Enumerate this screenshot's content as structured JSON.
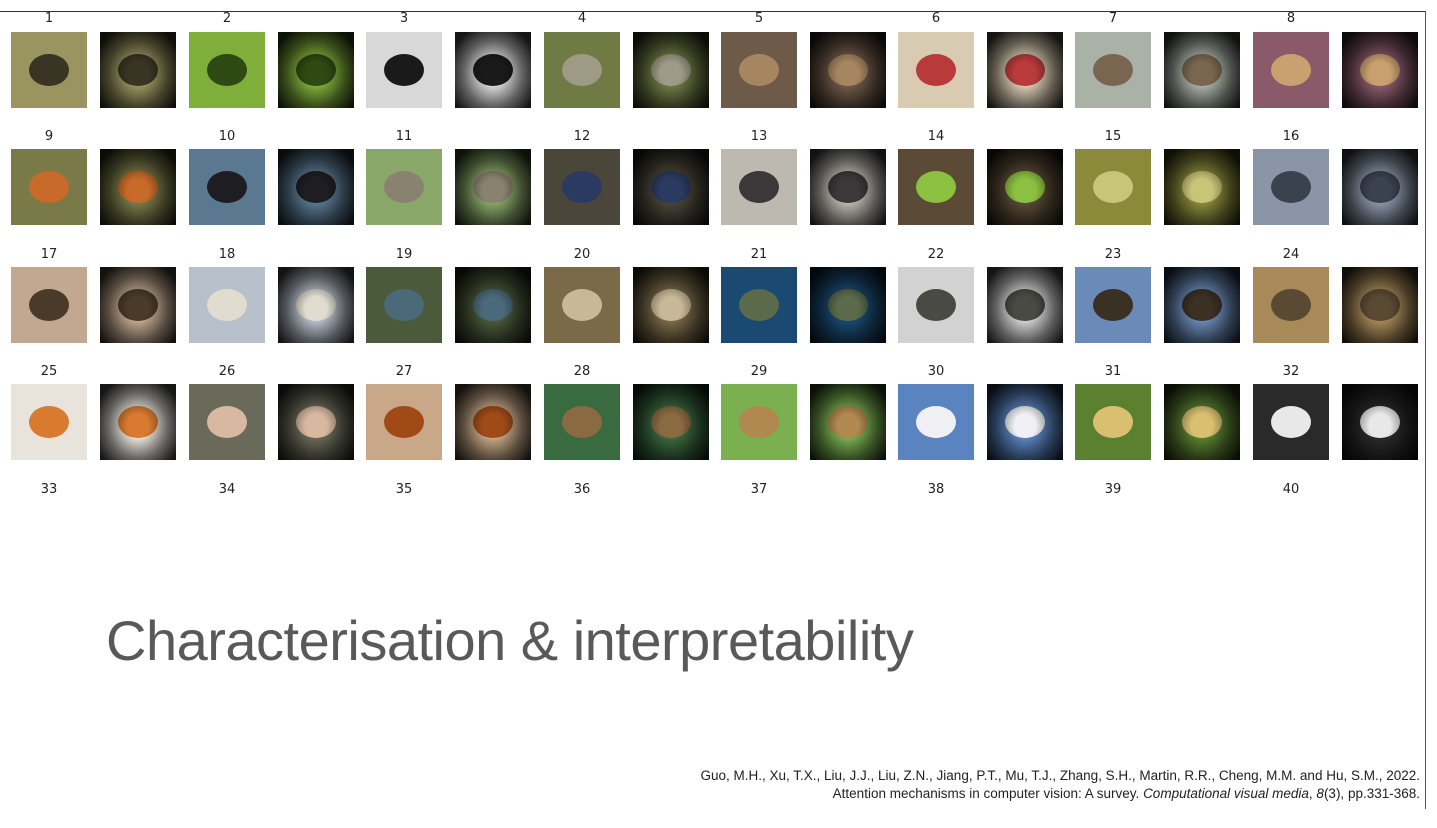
{
  "slide": {
    "title": "Characterisation & interpretability",
    "citation": {
      "line1": "Guo, M.H., Xu, T.X., Liu, J.J., Liu, Z.N., Jiang, P.T., Mu, T.J., Zhang, S.H., Martin, R.R., Cheng, M.M. and Hu, S.M., 2022.",
      "line2_pre": "Attention mechanisms in computer vision: A survey. ",
      "journal": "Computational visual media",
      "volume": "8",
      "line2_post": "(3), pp.331-368."
    }
  },
  "figure": {
    "numbers": [
      "1",
      "2",
      "3",
      "4",
      "5",
      "6",
      "7",
      "8",
      "9",
      "10",
      "11",
      "12",
      "13",
      "14",
      "15",
      "16",
      "17",
      "18",
      "19",
      "20",
      "21",
      "22",
      "23",
      "24",
      "25",
      "26",
      "27",
      "28",
      "29",
      "30",
      "31",
      "32",
      "33",
      "34",
      "35",
      "36",
      "37",
      "38",
      "39",
      "40"
    ],
    "thumbnails": [
      {
        "bg": "#9a9460",
        "subj": "#3a3424"
      },
      {
        "bg": "#7fae3a",
        "subj": "#2e4a12"
      },
      {
        "bg": "#d8d8d8",
        "subj": "#1a1a1a"
      },
      {
        "bg": "#6f7a44",
        "subj": "#9e9a86"
      },
      {
        "bg": "#6e5a48",
        "subj": "#a68660"
      },
      {
        "bg": "#d9cbb2",
        "subj": "#b83a3a"
      },
      {
        "bg": "#aab2a8",
        "subj": "#7a6650"
      },
      {
        "bg": "#8a5a6a",
        "subj": "#c9a070"
      },
      {
        "bg": "#7a7a48",
        "subj": "#c86a2a"
      },
      {
        "bg": "#5a7890",
        "subj": "#1e1e22"
      },
      {
        "bg": "#8aa86a",
        "subj": "#8a8270"
      },
      {
        "bg": "#4a463a",
        "subj": "#2a3a60"
      },
      {
        "bg": "#bdb8b0",
        "subj": "#3a3838"
      },
      {
        "bg": "#5a4a36",
        "subj": "#8cc040"
      },
      {
        "bg": "#8a8a3a",
        "subj": "#c8c478"
      },
      {
        "bg": "#8a96a8",
        "subj": "#3a4250"
      },
      {
        "bg": "#c2a890",
        "subj": "#4a3a2a"
      },
      {
        "bg": "#b8c0cc",
        "subj": "#e0dcd0"
      },
      {
        "bg": "#4a5a3a",
        "subj": "#4a6a7a"
      },
      {
        "bg": "#7a6a48",
        "subj": "#c8b898"
      },
      {
        "bg": "#1a4a72",
        "subj": "#5a6a4a"
      },
      {
        "bg": "#d2d2d2",
        "subj": "#4a4a44"
      },
      {
        "bg": "#6a8ab8",
        "subj": "#3a3024"
      },
      {
        "bg": "#a88a58",
        "subj": "#5a4a34"
      },
      {
        "bg": "#e8e4dc",
        "subj": "#d87a30"
      },
      {
        "bg": "#6a6a5a",
        "subj": "#d8b8a0"
      },
      {
        "bg": "#c8a888",
        "subj": "#a04a18"
      },
      {
        "bg": "#3a6a40",
        "subj": "#8a6a40"
      },
      {
        "bg": "#7ab050",
        "subj": "#b08850"
      },
      {
        "bg": "#5a84c0",
        "subj": "#f0f0f4"
      },
      {
        "bg": "#5a8030",
        "subj": "#d8c070"
      },
      {
        "bg": "#2a2a2a",
        "subj": "#e8e8e8"
      }
    ]
  }
}
